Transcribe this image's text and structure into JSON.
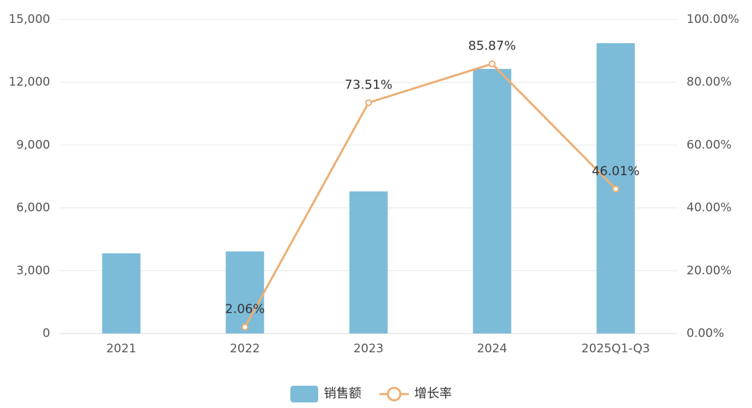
{
  "chart_data": {
    "type": "bar",
    "categories": [
      "2021",
      "2022",
      "2023",
      "2024",
      "2025Q1-Q3"
    ],
    "series": [
      {
        "name": "销售额",
        "type": "bar",
        "color": "#7dbcd9",
        "values": [
          3830,
          3920,
          6790,
          12640,
          13870
        ]
      },
      {
        "name": "增长率",
        "type": "line",
        "axis": "y2",
        "color": "#edae72",
        "values": [
          null,
          2.06,
          73.51,
          85.87,
          46.01
        ],
        "value_labels": [
          null,
          "2.06%",
          "73.51%",
          "85.87%",
          "46.01%"
        ]
      }
    ],
    "ylim": [
      0,
      15000
    ],
    "yticks": [
      0,
      {
        "value": 3000,
        "label": "3,000"
      },
      {
        "value": 6000,
        "label": "6,000"
      },
      {
        "value": 9000,
        "label": "9,000"
      },
      {
        "value": 12000,
        "label": "12,000"
      },
      {
        "value": 15000,
        "label": "15,000"
      }
    ],
    "y2lim": [
      0,
      100
    ],
    "y2ticks": [
      {
        "value": 0,
        "label": "0.00%"
      },
      {
        "value": 20,
        "label": "20.00%"
      },
      {
        "value": 40,
        "label": "40.00%"
      },
      {
        "value": 60,
        "label": "60.00%"
      },
      {
        "value": 80,
        "label": "80.00%"
      },
      {
        "value": 100,
        "label": "100.00%"
      }
    ],
    "grid": true,
    "legend": "bottom"
  }
}
